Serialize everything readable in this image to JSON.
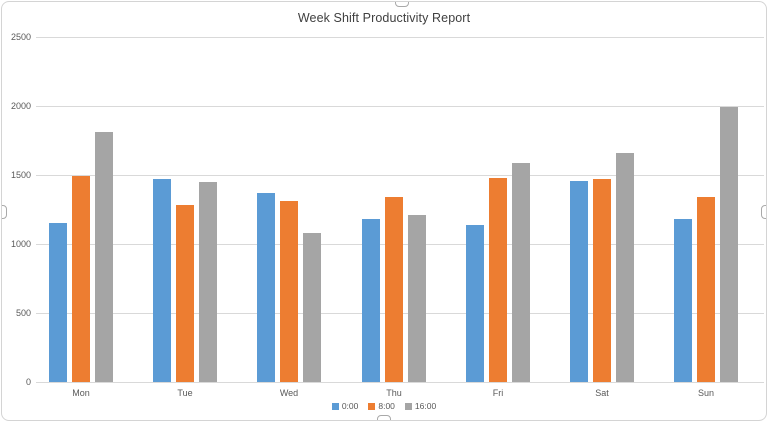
{
  "chart_data": {
    "type": "bar",
    "title": "Week Shift Productivity Report",
    "categories": [
      "Mon",
      "Tue",
      "Wed",
      "Thu",
      "Fri",
      "Sat",
      "Sun"
    ],
    "series": [
      {
        "name": "0:00",
        "color": "#5B9BD5",
        "values": [
          1150,
          1470,
          1370,
          1180,
          1140,
          1460,
          1180
        ]
      },
      {
        "name": "8:00",
        "color": "#ED7D31",
        "values": [
          1490,
          1280,
          1310,
          1340,
          1480,
          1470,
          1340
        ]
      },
      {
        "name": "16:00",
        "color": "#A5A5A5",
        "values": [
          1810,
          1450,
          1080,
          1210,
          1590,
          1660,
          1990
        ]
      }
    ],
    "ylabel": "",
    "xlabel": "",
    "ylim": [
      0,
      2500
    ],
    "yticks": [
      0,
      500,
      1000,
      1500,
      2000,
      2500
    ],
    "grid": true,
    "legend_position": "bottom",
    "colors": {
      "gridline": "#D9D9D9",
      "axis_text": "#595959",
      "title_text": "#404040",
      "chart_border": "#D4D4D4",
      "background": "#FFFFFF"
    }
  },
  "selection": {
    "handles": [
      "top",
      "bottom",
      "left",
      "right"
    ]
  }
}
